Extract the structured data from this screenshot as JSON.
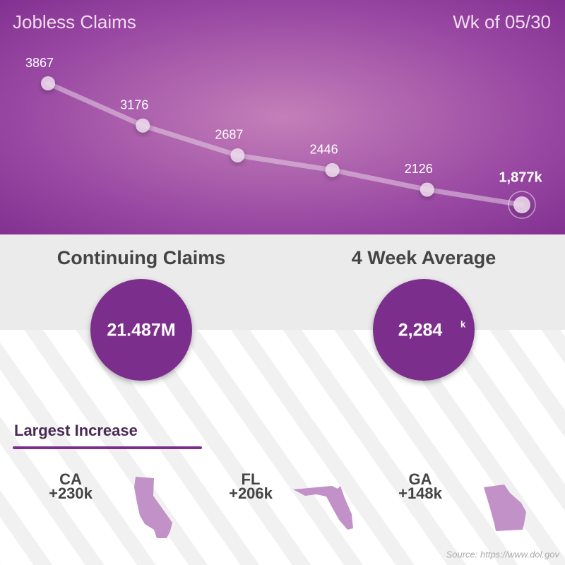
{
  "chart_data": {
    "type": "line",
    "title": "Jobless Claims",
    "subtitle": "Wk of 05/30",
    "values": [
      3867,
      3176,
      2687,
      2446,
      2126,
      1877
    ],
    "value_labels": [
      "3867",
      "3176",
      "2687",
      "2446",
      "2126",
      "1,877k"
    ],
    "color": "#e6cfe6"
  },
  "stats": [
    {
      "label": "Continuing Claims",
      "value": "21.487M"
    },
    {
      "label": "4 Week Average",
      "value": "2,284",
      "unit": "k"
    }
  ],
  "increase": {
    "title": "Largest Increase",
    "states": [
      {
        "code": "CA",
        "change": "+230k"
      },
      {
        "code": "FL",
        "change": "+206k"
      },
      {
        "code": "GA",
        "change": "+148k"
      }
    ]
  },
  "source": "Source: https://www.dol.gov"
}
